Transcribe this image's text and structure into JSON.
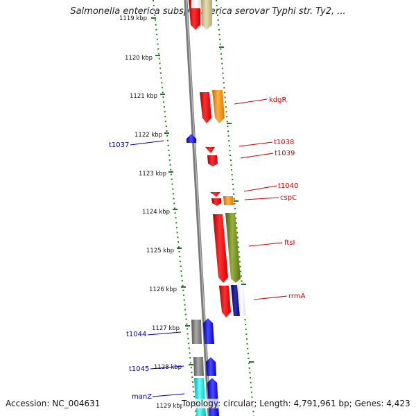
{
  "header": {
    "title": "Salmonella enterica subsp. enterica serovar Typhi str. Ty2, ..."
  },
  "footer": {
    "accession": "Accession: NC_004631",
    "stats": "Topology: circular; Length: 4,791,961 bp; Genes: 4,423"
  },
  "colors": {
    "forward_label": "#cc0000",
    "reverse_label": "#0000aa",
    "tick_mark": "#227722",
    "backbone": "#888888"
  },
  "scale": {
    "ticks": [
      "1119 kbp",
      "1120 kbp",
      "1121 kbp",
      "1122 kbp",
      "1123 kbp",
      "1124 kbp",
      "1125 kbp",
      "1126 kbp",
      "1127 kbp",
      "1128 kbp",
      "1129 kbp"
    ]
  },
  "genes": {
    "forward": [
      "kdgR",
      "t1038",
      "t1039",
      "t1040",
      "cspC",
      "ftsI",
      "rrmA"
    ],
    "reverse": [
      "t1037",
      "t1044",
      "t1045",
      "manZ"
    ]
  }
}
